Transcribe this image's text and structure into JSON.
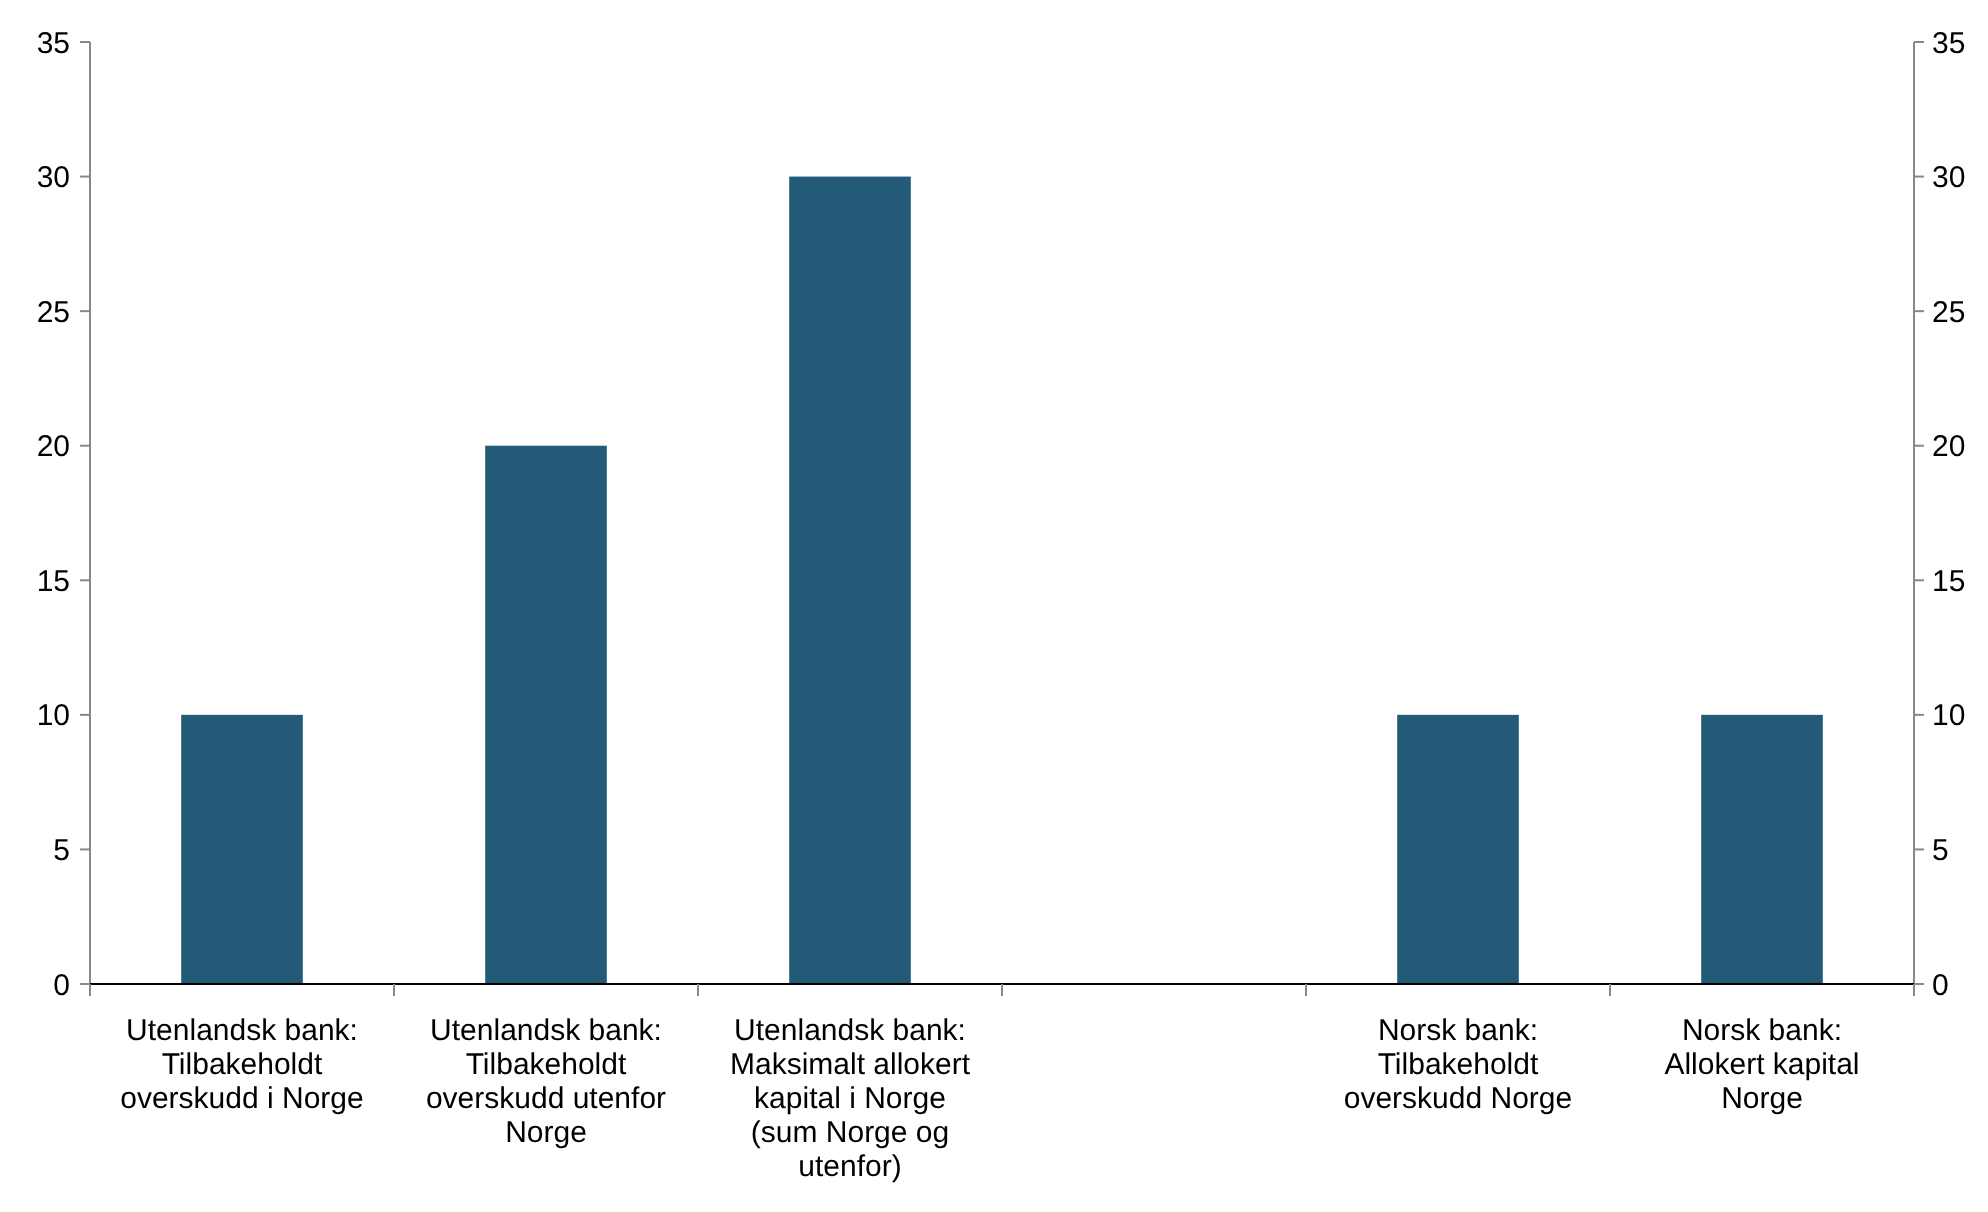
{
  "chart_data": {
    "type": "bar",
    "categories": [
      "Utenlandsk bank: Tilbakeholdt overskudd i Norge",
      "Utenlandsk bank: Tilbakeholdt overskudd utenfor Norge",
      "Utenlandsk bank: Maksimalt allokert kapital i Norge (sum Norge og utenfor)",
      null,
      "Norsk bank: Tilbakeholdt overskudd Norge",
      "Norsk bank: Allokert kapital Norge"
    ],
    "values": [
      10,
      20,
      30,
      null,
      10,
      10
    ],
    "color": "#235a78",
    "ylim": [
      0,
      35
    ],
    "yticks": [
      0,
      5,
      10,
      15,
      20,
      25,
      30,
      35
    ],
    "y2lim": [
      0,
      35
    ],
    "y2ticks": [
      0,
      5,
      10,
      15,
      20,
      25,
      30,
      35
    ],
    "grid": false
  }
}
